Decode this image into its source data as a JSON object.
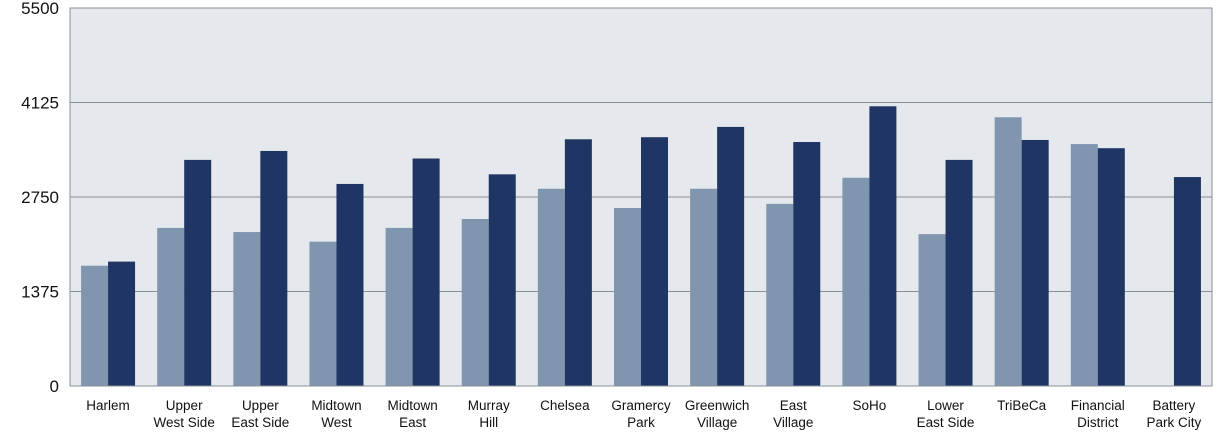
{
  "chart_data": {
    "type": "bar",
    "title": "",
    "xlabel": "",
    "ylabel": "",
    "ylim": [
      0,
      5500
    ],
    "yticks": [
      "0",
      "1375",
      "2750",
      "4125",
      "5500"
    ],
    "grid": true,
    "categories": [
      [
        "Harlem"
      ],
      [
        "Upper",
        "West Side"
      ],
      [
        "Upper",
        "East Side"
      ],
      [
        "Midtown",
        "West"
      ],
      [
        "Midtown",
        "East"
      ],
      [
        "Murray",
        "Hill"
      ],
      [
        "Chelsea"
      ],
      [
        "Gramercy",
        "Park"
      ],
      [
        "Greenwich",
        "Village"
      ],
      [
        "East",
        "Village"
      ],
      [
        "SoHo"
      ],
      [
        "Lower",
        "East Side"
      ],
      [
        "TriBeCa"
      ],
      [
        "Financial",
        "District"
      ],
      [
        "Battery",
        "Park City"
      ]
    ],
    "series": [
      {
        "color": "#7f96ae",
        "values": [
          1750,
          2300,
          2240,
          2100,
          2300,
          2430,
          2870,
          2590,
          2870,
          2650,
          3030,
          2210,
          3910,
          3520,
          null
        ]
      },
      {
        "color": "#1f3564",
        "values": [
          1810,
          3290,
          3420,
          2940,
          3310,
          3080,
          3590,
          3620,
          3770,
          3550,
          4070,
          3290,
          3580,
          3460,
          3040
        ]
      }
    ],
    "colors": {
      "plot_background": "#e5e8ed",
      "gridline": "#8a8f98",
      "frame": "#8a8f98"
    }
  }
}
